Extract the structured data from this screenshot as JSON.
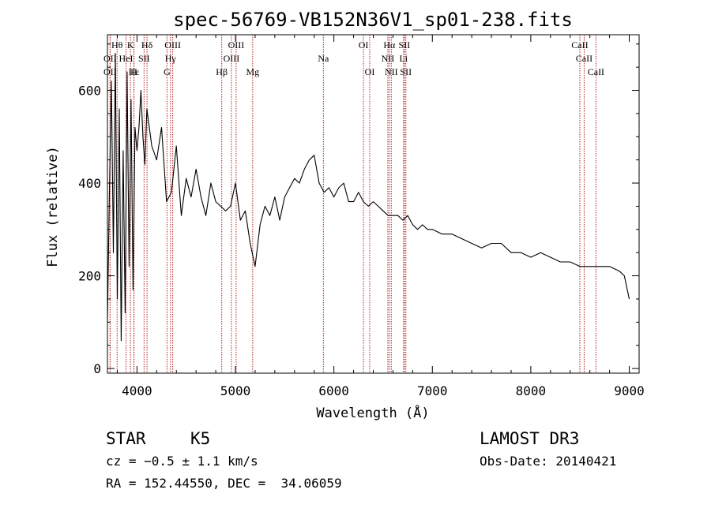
{
  "chart_data": {
    "type": "line",
    "title": "spec-56769-VB152N36V1_sp01-238.fits",
    "xlabel": "Wavelength (Å)",
    "ylabel": "Flux (relative)",
    "xlim": [
      3700,
      9100
    ],
    "ylim": [
      -10,
      720
    ],
    "x_ticks": [
      4000,
      5000,
      6000,
      7000,
      8000,
      9000
    ],
    "y_ticks": [
      0,
      200,
      400,
      600
    ],
    "x_tick_labels": [
      "4000",
      "5000",
      "6000",
      "7000",
      "8000",
      "9000"
    ],
    "y_tick_labels": [
      "0",
      "200",
      "400",
      "600"
    ],
    "line_color": "#000000",
    "marker_color": "#b22222",
    "series": [
      {
        "name": "flux",
        "x": [
          3700,
          3720,
          3740,
          3760,
          3780,
          3800,
          3820,
          3840,
          3860,
          3880,
          3900,
          3920,
          3940,
          3960,
          3980,
          4000,
          4020,
          4040,
          4060,
          4080,
          4100,
          4150,
          4200,
          4250,
          4300,
          4350,
          4400,
          4450,
          4500,
          4550,
          4600,
          4650,
          4700,
          4750,
          4800,
          4850,
          4900,
          4950,
          5000,
          5050,
          5100,
          5150,
          5200,
          5250,
          5300,
          5350,
          5400,
          5450,
          5500,
          5550,
          5600,
          5650,
          5700,
          5750,
          5800,
          5850,
          5900,
          5950,
          6000,
          6050,
          6100,
          6150,
          6200,
          6250,
          6300,
          6350,
          6400,
          6450,
          6500,
          6550,
          6600,
          6650,
          6700,
          6750,
          6800,
          6850,
          6900,
          6950,
          7000,
          7100,
          7200,
          7300,
          7400,
          7500,
          7600,
          7700,
          7800,
          7900,
          8000,
          8100,
          8200,
          8300,
          8400,
          8500,
          8600,
          8700,
          8800,
          8900,
          8950,
          9000
        ],
        "y": [
          100,
          380,
          620,
          250,
          680,
          150,
          560,
          60,
          470,
          120,
          640,
          220,
          580,
          170,
          520,
          470,
          520,
          600,
          500,
          440,
          560,
          480,
          450,
          520,
          360,
          380,
          480,
          330,
          410,
          370,
          430,
          370,
          330,
          400,
          360,
          350,
          340,
          350,
          400,
          320,
          340,
          270,
          220,
          310,
          350,
          330,
          370,
          320,
          370,
          390,
          410,
          400,
          430,
          450,
          460,
          400,
          380,
          390,
          370,
          390,
          400,
          360,
          360,
          380,
          360,
          350,
          360,
          350,
          340,
          330,
          330,
          330,
          320,
          330,
          310,
          300,
          310,
          300,
          300,
          290,
          290,
          280,
          270,
          260,
          270,
          270,
          250,
          250,
          240,
          250,
          240,
          230,
          230,
          220,
          220,
          220,
          220,
          210,
          200,
          150
        ]
      }
    ],
    "line_markers": [
      {
        "label": "Hθ",
        "x": 3798,
        "row": 1
      },
      {
        "label": "K",
        "x": 3934,
        "row": 1
      },
      {
        "label": "Hδ",
        "x": 4102,
        "row": 1
      },
      {
        "label": "OIII",
        "x": 4363,
        "row": 1
      },
      {
        "label": "OIII",
        "x": 5007,
        "row": 1
      },
      {
        "label": "OI",
        "x": 6300,
        "row": 1
      },
      {
        "label": "Hα",
        "x": 6563,
        "row": 1
      },
      {
        "label": "SII",
        "x": 6716,
        "row": 1
      },
      {
        "label": "CaII",
        "x": 8498,
        "row": 1
      },
      {
        "label": "OII",
        "x": 3727,
        "row": 2
      },
      {
        "label": "HeI",
        "x": 3889,
        "row": 2
      },
      {
        "label": "SII",
        "x": 4072,
        "row": 2
      },
      {
        "label": "Hγ",
        "x": 4340,
        "row": 2
      },
      {
        "label": "OIII",
        "x": 4959,
        "row": 2
      },
      {
        "label": "Na",
        "x": 5893,
        "row": 2
      },
      {
        "label": "NII",
        "x": 6548,
        "row": 2
      },
      {
        "label": "Li",
        "x": 6708,
        "row": 2
      },
      {
        "label": "CaII",
        "x": 8542,
        "row": 2
      },
      {
        "label": "OII",
        "x": 3727,
        "row": 3
      },
      {
        "label": "Hε",
        "x": 3970,
        "row": 3
      },
      {
        "label": "H",
        "x": 3968,
        "row": 3
      },
      {
        "label": "G",
        "x": 4305,
        "row": 3
      },
      {
        "label": "Hβ",
        "x": 4861,
        "row": 3
      },
      {
        "label": "Mg",
        "x": 5175,
        "row": 3
      },
      {
        "label": "OI",
        "x": 6364,
        "row": 3
      },
      {
        "label": "NII",
        "x": 6583,
        "row": 3
      },
      {
        "label": "SII",
        "x": 6731,
        "row": 3
      },
      {
        "label": "CaII",
        "x": 8662,
        "row": 3
      }
    ]
  },
  "info": {
    "class": "STAR",
    "subclass": "K5",
    "survey": "LAMOST DR3",
    "cz": "cz = −0.5 ± 1.1 km/s",
    "obs_date": "Obs-Date: 20140421",
    "radec": "RA = 152.44550, DEC =  34.06059"
  }
}
